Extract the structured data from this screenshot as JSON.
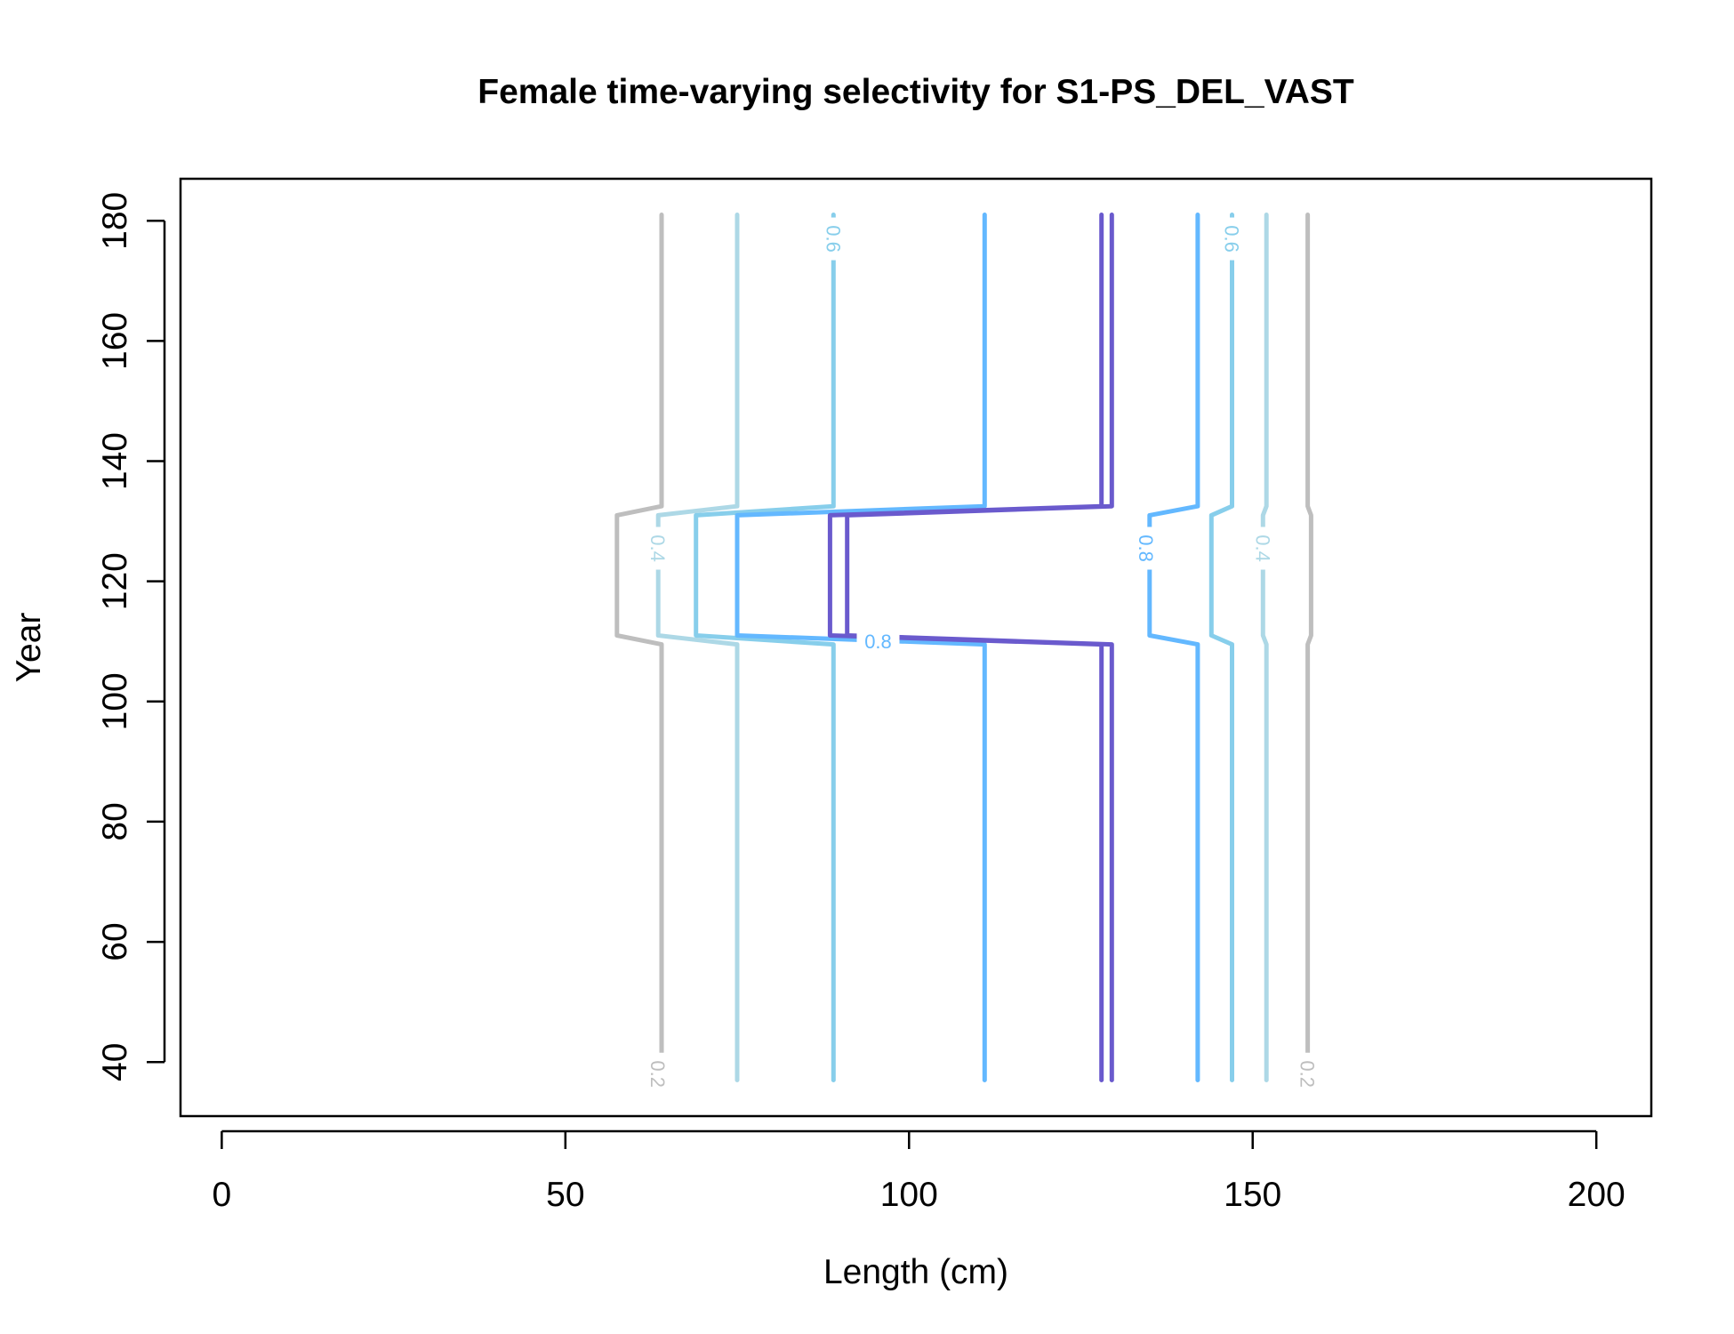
{
  "chart_data": {
    "type": "contour",
    "title": "Female time-varying selectivity for S1-PS_DEL_VAST",
    "xlabel": "Length (cm)",
    "ylabel": "Year",
    "xlim": [
      -6,
      208
    ],
    "ylim": [
      31,
      187
    ],
    "x_ticks": [
      0,
      50,
      100,
      150,
      200
    ],
    "y_ticks": [
      40,
      60,
      80,
      100,
      120,
      140,
      160,
      180
    ],
    "grid": false,
    "year_range": [
      37,
      181
    ],
    "time_block_years": [
      111,
      131
    ],
    "levels": [
      {
        "level": "0.2",
        "color": "#bebebe",
        "baseline_lengths": [
          64,
          158
        ],
        "block_lengths": [
          57.5,
          158.5
        ]
      },
      {
        "level": "0.4",
        "color": "#add8e6",
        "baseline_lengths": [
          75,
          152
        ],
        "block_lengths": [
          63.5,
          151.5
        ]
      },
      {
        "level": "0.6",
        "color": "#87ceeb",
        "baseline_lengths": [
          89,
          147
        ],
        "block_lengths": [
          69,
          144
        ]
      },
      {
        "level": "0.8",
        "color": "#63b8ff",
        "baseline_lengths": [
          111,
          142
        ],
        "block_lengths": [
          75,
          135
        ]
      },
      {
        "level": "1",
        "color": "#6a5acd",
        "baseline_lengths": [
          128,
          129.5
        ],
        "block_lengths": [
          88.5,
          91
        ]
      }
    ],
    "labels_shown": [
      {
        "text": "0.2",
        "x": 63.5,
        "y": 38,
        "rotated": true
      },
      {
        "text": "0.2",
        "x": 158,
        "y": 38,
        "rotated": true
      },
      {
        "text": "0.4",
        "x": 63.5,
        "y": 125.5,
        "rotated": true
      },
      {
        "text": "0.4",
        "x": 151.5,
        "y": 125.5,
        "rotated": true
      },
      {
        "text": "0.6",
        "x": 89,
        "y": 177,
        "rotated": true
      },
      {
        "text": "0.6",
        "x": 147,
        "y": 177,
        "rotated": true
      },
      {
        "text": "0.8",
        "x": 134.5,
        "y": 125.5,
        "rotated": true
      },
      {
        "text": "0.8",
        "x": 95.5,
        "y": 110,
        "rotated": false
      }
    ]
  }
}
